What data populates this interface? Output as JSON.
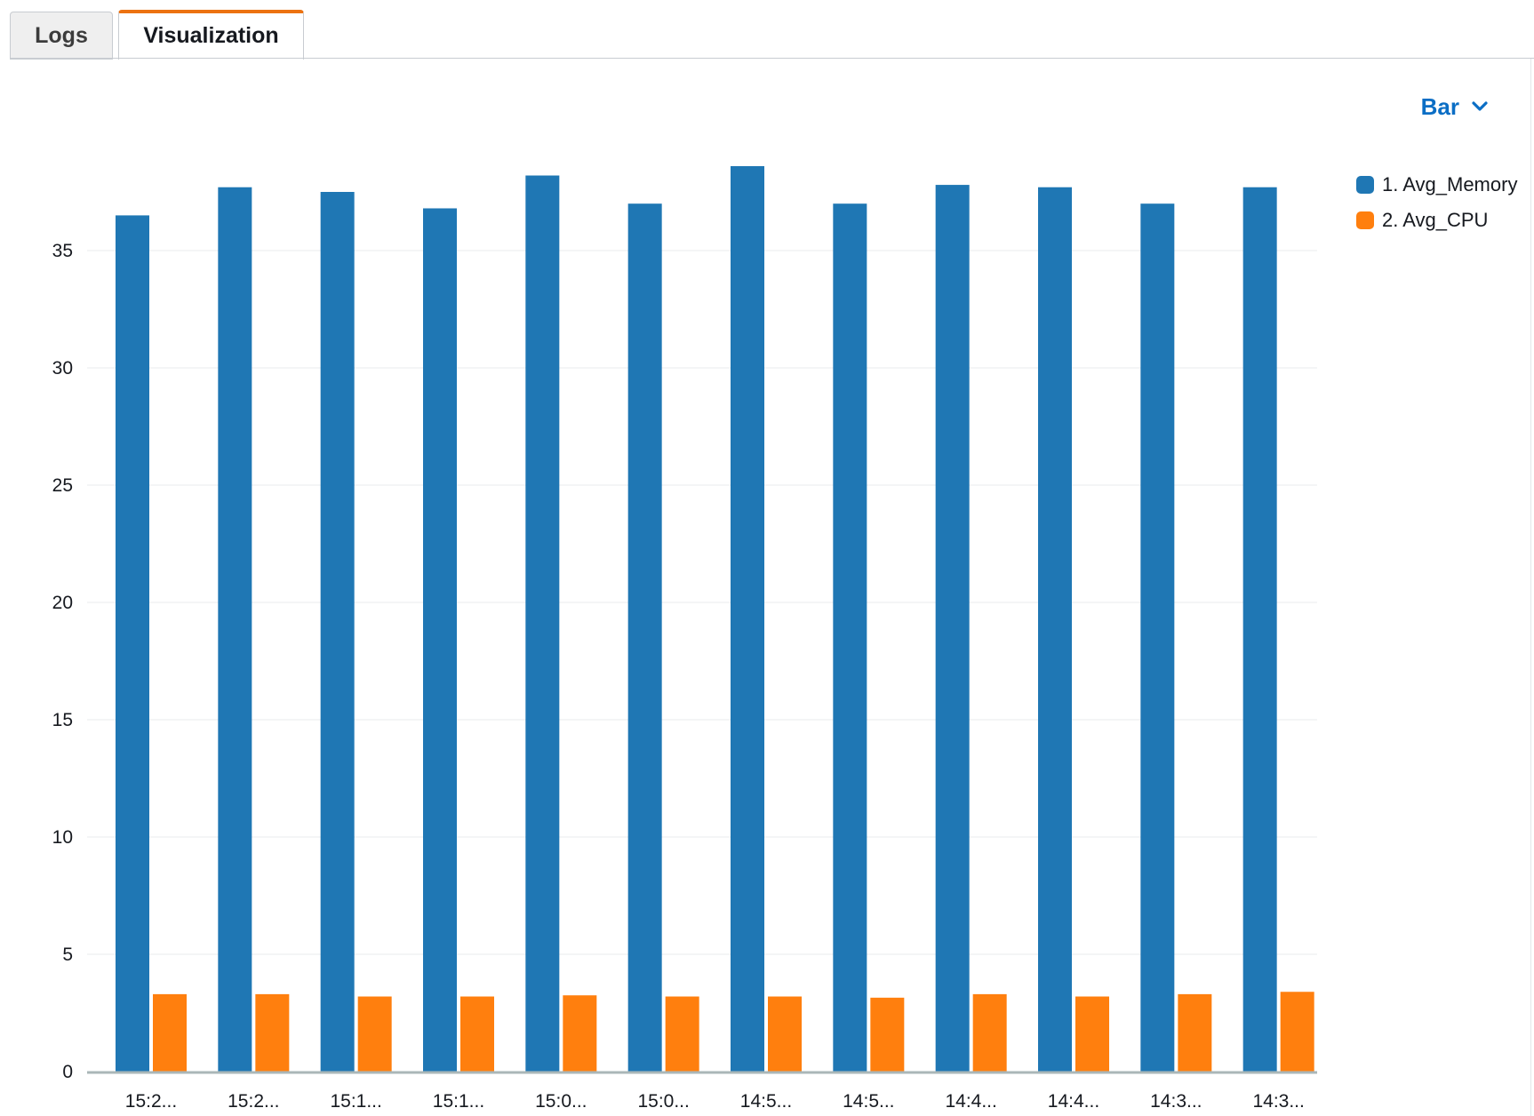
{
  "tabs": {
    "logs": "Logs",
    "visualization": "Visualization"
  },
  "chart_type_selector": {
    "label": "Bar",
    "icon": "chevron-down-icon"
  },
  "colors": {
    "series_1": "#1f77b4",
    "series_2": "#ff7f0e",
    "accent_tab": "#ec7211",
    "link": "#0b6ec5"
  },
  "chart_data": {
    "type": "bar",
    "categories": [
      "15:2...",
      "15:2...",
      "15:1...",
      "15:1...",
      "15:0...",
      "15:0...",
      "14:5...",
      "14:5...",
      "14:4...",
      "14:4...",
      "14:3...",
      "14:3..."
    ],
    "series": [
      {
        "name": "1. Avg_Memory",
        "values": [
          36.5,
          37.7,
          37.5,
          36.8,
          38.2,
          37.0,
          38.6,
          37.0,
          37.8,
          37.7,
          37.0,
          37.7
        ]
      },
      {
        "name": "2. Avg_CPU",
        "values": [
          3.3,
          3.3,
          3.2,
          3.2,
          3.25,
          3.2,
          3.2,
          3.15,
          3.3,
          3.2,
          3.3,
          3.4
        ]
      }
    ],
    "yticks": [
      0,
      5,
      10,
      15,
      20,
      25,
      30,
      35
    ],
    "ylim": [
      0,
      40
    ],
    "grid": true,
    "legend_position": "right"
  }
}
